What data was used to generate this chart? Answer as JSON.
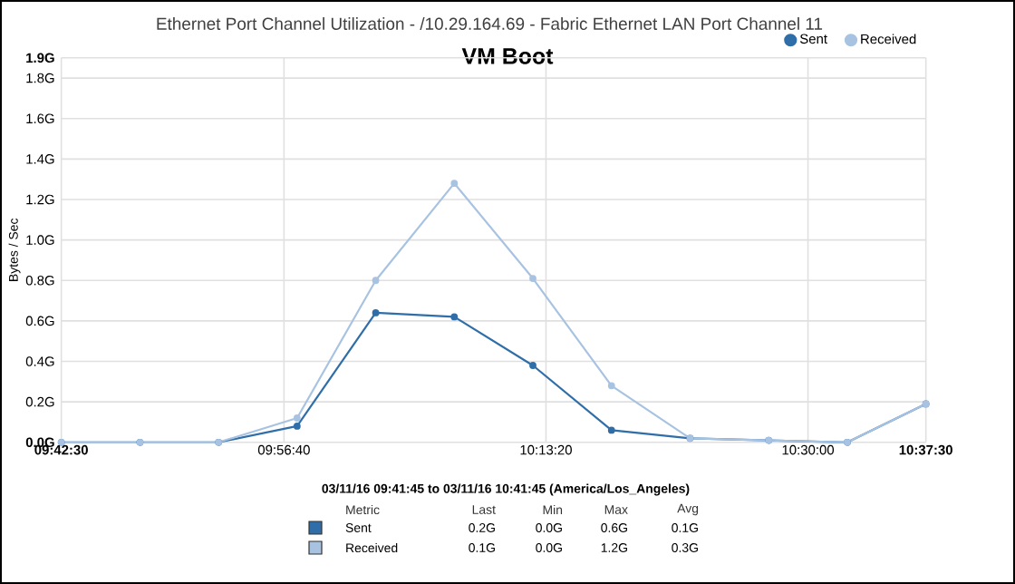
{
  "chart_data": {
    "type": "line",
    "title": "Ethernet Port Channel Utilization - /10.29.164.69 - Fabric Ethernet LAN Port Channel 11",
    "subtitle": "VM Boot",
    "ylabel": "Bytes / Sec",
    "x": [
      9.708333,
      9.791667,
      9.875,
      9.958333,
      10.041667,
      10.125,
      10.208333,
      10.291667,
      10.375,
      10.458333,
      10.541667,
      10.625
    ],
    "series": [
      {
        "name": "Sent",
        "color": "#2f6ea8",
        "values": [
          0,
          0,
          0,
          0.08,
          0.64,
          0.62,
          0.38,
          0.06,
          0.02,
          0.01,
          0,
          0.19
        ]
      },
      {
        "name": "Received",
        "color": "#a8c3e2",
        "values": [
          0,
          0,
          0,
          0.12,
          0.8,
          1.28,
          0.81,
          0.28,
          0.02,
          0.01,
          0,
          0.19
        ]
      }
    ],
    "xlim": [
      9.708333,
      10.625
    ],
    "xticks": [
      {
        "value": 9.708333,
        "label": "09:42:30"
      },
      {
        "value": 9.944444,
        "label": "09:56:40"
      },
      {
        "value": 10.222222,
        "label": "10:13:20"
      },
      {
        "value": 10.5,
        "label": "10:30:00"
      },
      {
        "value": 10.625,
        "label": "10:37:30"
      }
    ],
    "ylim": [
      0,
      1.9
    ],
    "yticks": [
      {
        "value": 0,
        "label": "0.0G"
      },
      {
        "value": 0.2,
        "label": "0.2G"
      },
      {
        "value": 0.4,
        "label": "0.4G"
      },
      {
        "value": 0.6,
        "label": "0.6G"
      },
      {
        "value": 0.8,
        "label": "0.8G"
      },
      {
        "value": 1.0,
        "label": "1.0G"
      },
      {
        "value": 1.2,
        "label": "1.2G"
      },
      {
        "value": 1.4,
        "label": "1.4G"
      },
      {
        "value": 1.6,
        "label": "1.6G"
      },
      {
        "value": 1.8,
        "label": "1.8G"
      },
      {
        "value": 1.9,
        "label": "1.9G"
      }
    ],
    "grid": true,
    "legend": "top right",
    "marker": "circle",
    "line_style": "solid",
    "annotations": [
      "03/11/16 09:41:45 to 03/11/16 10:41:45 (America/Los_Angeles)",
      "Metric",
      "Last",
      "Min",
      "Max",
      "Avg",
      "Sent",
      "0.2G",
      "0.0G",
      "0.6G",
      "0.1G",
      "Received",
      "0.1G",
      "0.0G",
      "1.2G",
      "0.3G"
    ]
  }
}
